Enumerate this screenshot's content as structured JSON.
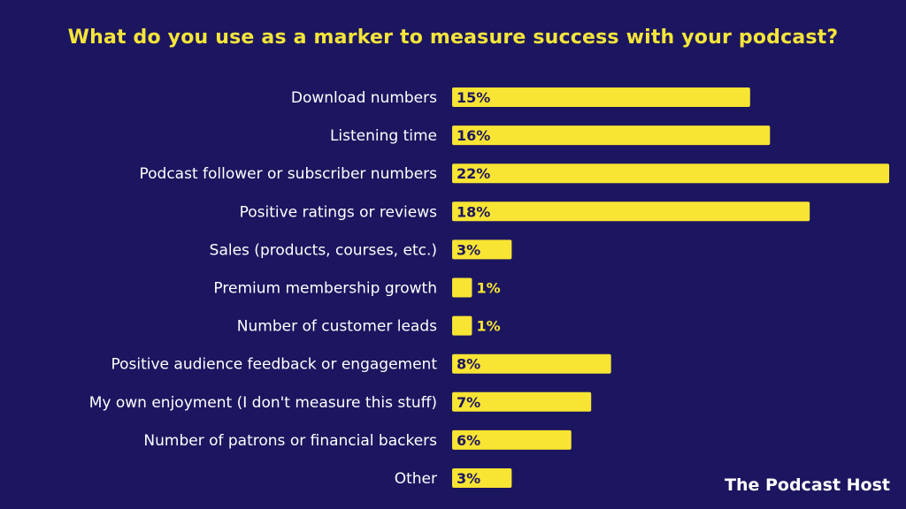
{
  "chart_data": {
    "type": "bar",
    "orientation": "horizontal",
    "title": "What do you use as a marker to measure success with your podcast?",
    "categories": [
      "Download numbers",
      "Listening time",
      "Podcast follower or subscriber numbers",
      "Positive ratings or reviews",
      "Sales (products, courses, etc.)",
      "Premium membership growth",
      "Number of customer leads",
      "Positive audience feedback or engagement",
      "My own enjoyment (I don't measure this stuff)",
      "Number of patrons or financial backers",
      "Other"
    ],
    "values": [
      15,
      16,
      22,
      18,
      3,
      1,
      1,
      8,
      7,
      6,
      3
    ],
    "value_labels": [
      "15%",
      "16%",
      "22%",
      "18%",
      "3%",
      "1%",
      "1%",
      "8%",
      "7%",
      "6%",
      "3%"
    ],
    "xlim": [
      0,
      22
    ],
    "xlabel": "",
    "ylabel": "",
    "grid": false,
    "legend": "none"
  },
  "colors": {
    "background": "#1c1660",
    "bar": "#f8e433",
    "title": "#f5e53a",
    "label": "#ffffff",
    "value_inside": "#1c1660",
    "value_outside": "#f8e433"
  },
  "brand": "The Podcast Host"
}
